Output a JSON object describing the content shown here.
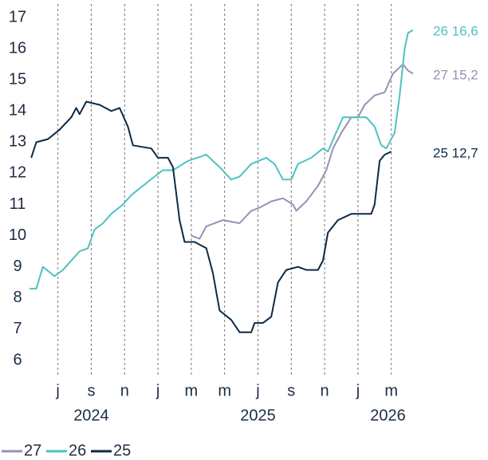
{
  "chart_data": {
    "type": "line",
    "xlim": [
      5.2,
      28.4
    ],
    "xticks": [
      {
        "value": 7,
        "label": "j"
      },
      {
        "value": 9,
        "label": "s"
      },
      {
        "value": 11,
        "label": "n"
      },
      {
        "value": 13,
        "label": "j"
      },
      {
        "value": 15,
        "label": "m"
      },
      {
        "value": 17,
        "label": "m"
      },
      {
        "value": 19,
        "label": "j"
      },
      {
        "value": 21,
        "label": "s"
      },
      {
        "value": 23,
        "label": "n"
      },
      {
        "value": 25,
        "label": "j"
      },
      {
        "value": 27,
        "label": "m"
      }
    ],
    "year_labels": [
      {
        "value": 9,
        "label": "2024"
      },
      {
        "value": 19,
        "label": "2025"
      },
      {
        "value": 26.8,
        "label": "2026"
      }
    ],
    "ylim": [
      6,
      17
    ],
    "yticks": [
      6,
      7,
      8,
      9,
      10,
      11,
      12,
      13,
      14,
      15,
      16,
      17
    ],
    "grid": true,
    "series": [
      {
        "name": "27",
        "color": "#9a8fb8",
        "end_label": "27 15,2",
        "x": [
          15.0,
          15.5,
          15.9,
          16.9,
          17.9,
          18.6,
          19.1,
          19.8,
          20.5,
          21.1,
          21.3,
          21.9,
          22.6,
          23.1,
          23.5,
          24.0,
          24.6,
          25.0,
          25.4,
          26.0,
          26.6,
          27.1,
          27.7,
          28.0,
          28.3
        ],
        "values": [
          10.0,
          9.9,
          10.3,
          10.5,
          10.4,
          10.8,
          10.9,
          11.1,
          11.2,
          11.0,
          10.8,
          11.1,
          11.6,
          12.1,
          12.8,
          13.3,
          13.8,
          13.8,
          14.2,
          14.5,
          14.6,
          15.2,
          15.5,
          15.3,
          15.2
        ]
      },
      {
        "name": "26",
        "color": "#4fc1c1",
        "end_label": "26 16,6",
        "x": [
          5.3,
          5.7,
          6.1,
          6.8,
          7.3,
          7.8,
          8.3,
          8.8,
          9.2,
          9.7,
          10.2,
          10.9,
          11.4,
          12.1,
          12.8,
          13.3,
          13.9,
          14.8,
          15.9,
          16.7,
          17.4,
          17.9,
          18.6,
          19.5,
          20.0,
          20.5,
          21.0,
          21.4,
          22.2,
          22.9,
          23.2,
          23.6,
          24.1,
          25.5,
          26.0,
          26.4,
          26.7,
          27.2,
          27.5,
          27.8,
          28.0,
          28.3
        ],
        "values": [
          8.3,
          8.3,
          9.0,
          8.7,
          8.9,
          9.2,
          9.5,
          9.6,
          10.2,
          10.4,
          10.7,
          11.0,
          11.3,
          11.6,
          11.9,
          12.1,
          12.1,
          12.4,
          12.6,
          12.2,
          11.8,
          11.9,
          12.3,
          12.5,
          12.3,
          11.8,
          11.8,
          12.3,
          12.5,
          12.8,
          12.7,
          13.2,
          13.8,
          13.8,
          13.5,
          12.9,
          12.8,
          13.3,
          14.5,
          16.0,
          16.5,
          16.6
        ]
      },
      {
        "name": "25",
        "color": "#0d2a45",
        "end_label": "25 12,7",
        "x": [
          5.4,
          5.7,
          6.4,
          7.1,
          7.8,
          8.1,
          8.3,
          8.7,
          9.5,
          10.2,
          10.7,
          11.2,
          11.5,
          12.6,
          13.0,
          13.6,
          13.9,
          14.3,
          14.6,
          15.2,
          15.9,
          16.3,
          16.7,
          17.4,
          17.9,
          18.6,
          18.8,
          19.3,
          19.8,
          20.2,
          20.7,
          21.4,
          21.9,
          22.6,
          22.9,
          23.2,
          23.8,
          24.6,
          25.8,
          26.0,
          26.3,
          26.6,
          27.0
        ],
        "values": [
          12.5,
          13.0,
          13.1,
          13.4,
          13.8,
          14.1,
          13.9,
          14.3,
          14.2,
          14.0,
          14.1,
          13.5,
          12.9,
          12.8,
          12.5,
          12.5,
          12.2,
          10.5,
          9.8,
          9.8,
          9.6,
          8.8,
          7.6,
          7.3,
          6.9,
          6.9,
          7.2,
          7.2,
          7.4,
          8.5,
          8.9,
          9.0,
          8.9,
          8.9,
          9.2,
          10.1,
          10.5,
          10.7,
          10.7,
          11.0,
          12.4,
          12.6,
          12.7
        ]
      }
    ]
  }
}
